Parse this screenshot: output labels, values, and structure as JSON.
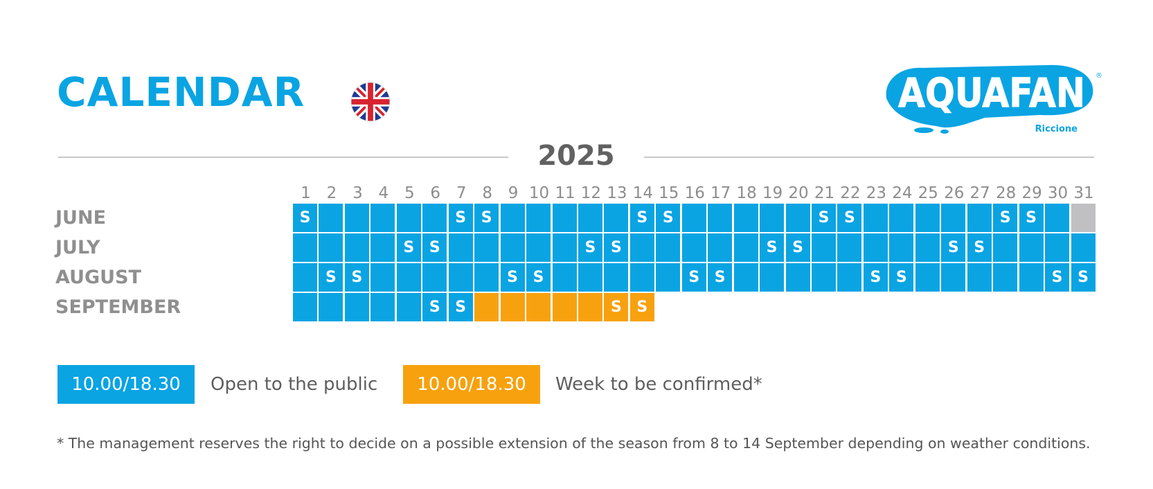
{
  "header": {
    "title": "CALENDAR",
    "language_icon": "uk-flag-icon",
    "logo_text": "AQUAFAN",
    "logo_subtext": "Riccione",
    "logo_mark": "®"
  },
  "year": "2025",
  "colors": {
    "open": "#0aa4e3",
    "to_be_confirmed": "#f8a10e",
    "closed": "#c0c0c2",
    "label_gray": "#8f8f8f",
    "title_blue": "#0aa4e3"
  },
  "days": [
    "1",
    "2",
    "3",
    "4",
    "5",
    "6",
    "7",
    "8",
    "9",
    "10",
    "11",
    "12",
    "13",
    "14",
    "15",
    "16",
    "17",
    "18",
    "19",
    "20",
    "21",
    "22",
    "23",
    "24",
    "25",
    "26",
    "27",
    "28",
    "29",
    "30",
    "31"
  ],
  "months": [
    {
      "name": "JUNE",
      "cells": [
        {
          "status": "open",
          "label": "S"
        },
        {
          "status": "open",
          "label": ""
        },
        {
          "status": "open",
          "label": ""
        },
        {
          "status": "open",
          "label": ""
        },
        {
          "status": "open",
          "label": ""
        },
        {
          "status": "open",
          "label": ""
        },
        {
          "status": "open",
          "label": "S"
        },
        {
          "status": "open",
          "label": "S"
        },
        {
          "status": "open",
          "label": ""
        },
        {
          "status": "open",
          "label": ""
        },
        {
          "status": "open",
          "label": ""
        },
        {
          "status": "open",
          "label": ""
        },
        {
          "status": "open",
          "label": ""
        },
        {
          "status": "open",
          "label": "S"
        },
        {
          "status": "open",
          "label": "S"
        },
        {
          "status": "open",
          "label": ""
        },
        {
          "status": "open",
          "label": ""
        },
        {
          "status": "open",
          "label": ""
        },
        {
          "status": "open",
          "label": ""
        },
        {
          "status": "open",
          "label": ""
        },
        {
          "status": "open",
          "label": "S"
        },
        {
          "status": "open",
          "label": "S"
        },
        {
          "status": "open",
          "label": ""
        },
        {
          "status": "open",
          "label": ""
        },
        {
          "status": "open",
          "label": ""
        },
        {
          "status": "open",
          "label": ""
        },
        {
          "status": "open",
          "label": ""
        },
        {
          "status": "open",
          "label": "S"
        },
        {
          "status": "open",
          "label": "S"
        },
        {
          "status": "open",
          "label": ""
        },
        {
          "status": "closed",
          "label": ""
        }
      ]
    },
    {
      "name": "JULY",
      "cells": [
        {
          "status": "open",
          "label": ""
        },
        {
          "status": "open",
          "label": ""
        },
        {
          "status": "open",
          "label": ""
        },
        {
          "status": "open",
          "label": ""
        },
        {
          "status": "open",
          "label": "S"
        },
        {
          "status": "open",
          "label": "S"
        },
        {
          "status": "open",
          "label": ""
        },
        {
          "status": "open",
          "label": ""
        },
        {
          "status": "open",
          "label": ""
        },
        {
          "status": "open",
          "label": ""
        },
        {
          "status": "open",
          "label": ""
        },
        {
          "status": "open",
          "label": "S"
        },
        {
          "status": "open",
          "label": "S"
        },
        {
          "status": "open",
          "label": ""
        },
        {
          "status": "open",
          "label": ""
        },
        {
          "status": "open",
          "label": ""
        },
        {
          "status": "open",
          "label": ""
        },
        {
          "status": "open",
          "label": ""
        },
        {
          "status": "open",
          "label": "S"
        },
        {
          "status": "open",
          "label": "S"
        },
        {
          "status": "open",
          "label": ""
        },
        {
          "status": "open",
          "label": ""
        },
        {
          "status": "open",
          "label": ""
        },
        {
          "status": "open",
          "label": ""
        },
        {
          "status": "open",
          "label": ""
        },
        {
          "status": "open",
          "label": "S"
        },
        {
          "status": "open",
          "label": "S"
        },
        {
          "status": "open",
          "label": ""
        },
        {
          "status": "open",
          "label": ""
        },
        {
          "status": "open",
          "label": ""
        },
        {
          "status": "open",
          "label": ""
        }
      ]
    },
    {
      "name": "AUGUST",
      "cells": [
        {
          "status": "open",
          "label": ""
        },
        {
          "status": "open",
          "label": "S"
        },
        {
          "status": "open",
          "label": "S"
        },
        {
          "status": "open",
          "label": ""
        },
        {
          "status": "open",
          "label": ""
        },
        {
          "status": "open",
          "label": ""
        },
        {
          "status": "open",
          "label": ""
        },
        {
          "status": "open",
          "label": ""
        },
        {
          "status": "open",
          "label": "S"
        },
        {
          "status": "open",
          "label": "S"
        },
        {
          "status": "open",
          "label": ""
        },
        {
          "status": "open",
          "label": ""
        },
        {
          "status": "open",
          "label": ""
        },
        {
          "status": "open",
          "label": ""
        },
        {
          "status": "open",
          "label": ""
        },
        {
          "status": "open",
          "label": "S"
        },
        {
          "status": "open",
          "label": "S"
        },
        {
          "status": "open",
          "label": ""
        },
        {
          "status": "open",
          "label": ""
        },
        {
          "status": "open",
          "label": ""
        },
        {
          "status": "open",
          "label": ""
        },
        {
          "status": "open",
          "label": ""
        },
        {
          "status": "open",
          "label": "S"
        },
        {
          "status": "open",
          "label": "S"
        },
        {
          "status": "open",
          "label": ""
        },
        {
          "status": "open",
          "label": ""
        },
        {
          "status": "open",
          "label": ""
        },
        {
          "status": "open",
          "label": ""
        },
        {
          "status": "open",
          "label": ""
        },
        {
          "status": "open",
          "label": "S"
        },
        {
          "status": "open",
          "label": "S"
        }
      ]
    },
    {
      "name": "SEPTEMBER",
      "cells": [
        {
          "status": "open",
          "label": ""
        },
        {
          "status": "open",
          "label": ""
        },
        {
          "status": "open",
          "label": ""
        },
        {
          "status": "open",
          "label": ""
        },
        {
          "status": "open",
          "label": ""
        },
        {
          "status": "open",
          "label": "S"
        },
        {
          "status": "open",
          "label": "S"
        },
        {
          "status": "tbc",
          "label": ""
        },
        {
          "status": "tbc",
          "label": ""
        },
        {
          "status": "tbc",
          "label": ""
        },
        {
          "status": "tbc",
          "label": ""
        },
        {
          "status": "tbc",
          "label": ""
        },
        {
          "status": "tbc",
          "label": "S"
        },
        {
          "status": "tbc",
          "label": "S"
        }
      ]
    }
  ],
  "legend": [
    {
      "hours": "10.00/18.30",
      "description": "Open to the public",
      "status": "open"
    },
    {
      "hours": "10.00/18.30",
      "description": "Week to be confirmed*",
      "status": "tbc"
    }
  ],
  "footnote": "* The management reserves the right to decide on a possible extension of the season from 8 to 14 September depending on weather conditions."
}
